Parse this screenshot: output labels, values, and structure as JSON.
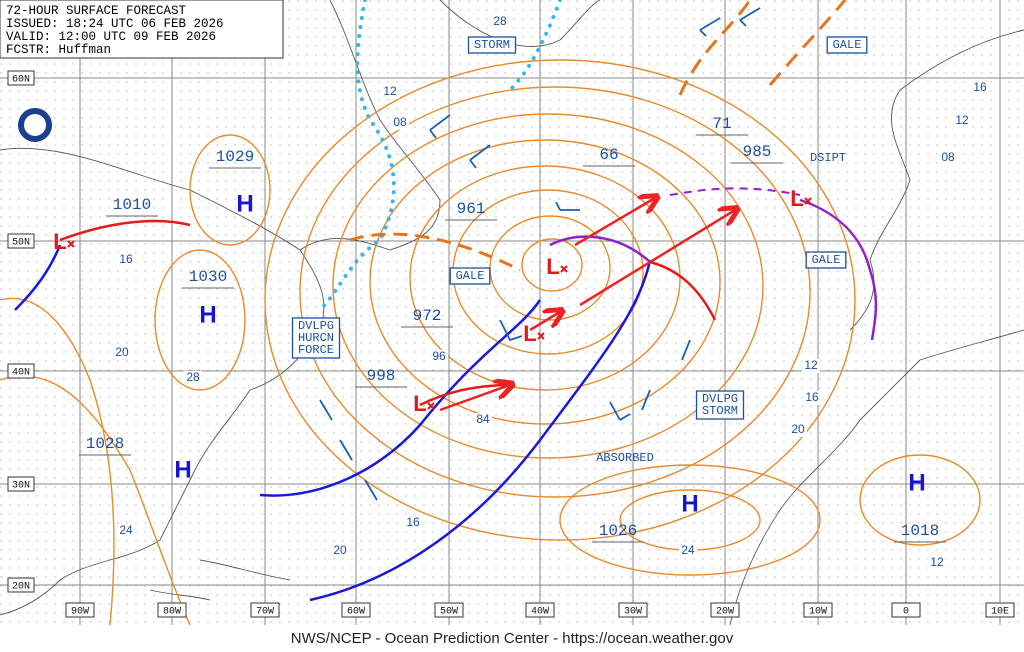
{
  "header": {
    "title": "72-HOUR SURFACE FORECAST",
    "issued": "ISSUED: 18:24 UTC 06 FEB 2026",
    "valid": "VALID: 12:00 UTC 09 FEB 2026",
    "forecaster": "FCSTR: Huffman"
  },
  "latitude_labels": [
    "60N",
    "50N",
    "40N",
    "30N",
    "20N"
  ],
  "longitude_labels": [
    "90W",
    "80W",
    "70W",
    "60W",
    "50W",
    "40W",
    "30W",
    "20W",
    "10W",
    "0",
    "10E"
  ],
  "high_symbols": [
    "H",
    "H",
    "H",
    "H",
    "H"
  ],
  "low_symbols": [
    "L",
    "L",
    "L",
    "L",
    "L"
  ],
  "central_pressures": [
    "1029",
    "1010",
    "1030",
    "1028",
    "961",
    "972",
    "998",
    "66",
    "71",
    "985",
    "1026",
    "1018"
  ],
  "warnings": [
    [
      "STORM"
    ],
    [
      "GALE"
    ],
    [
      "GALE"
    ],
    [
      "GALE"
    ],
    [
      "DVLPG",
      "HURCN",
      "FORCE"
    ],
    [
      "DVLPG",
      "STORM"
    ]
  ],
  "annotations": [
    "DSIPT",
    "ABSORBED"
  ],
  "isobar_labels": [
    "28",
    "12",
    "08",
    "16",
    "20",
    "28",
    "96",
    "84",
    "16",
    "20",
    "24",
    "24",
    "12",
    "16",
    "20",
    "12",
    "16",
    "12",
    "08"
  ],
  "footer": "NWS/NCEP - Ocean Prediction Center - https://ocean.weather.gov"
}
